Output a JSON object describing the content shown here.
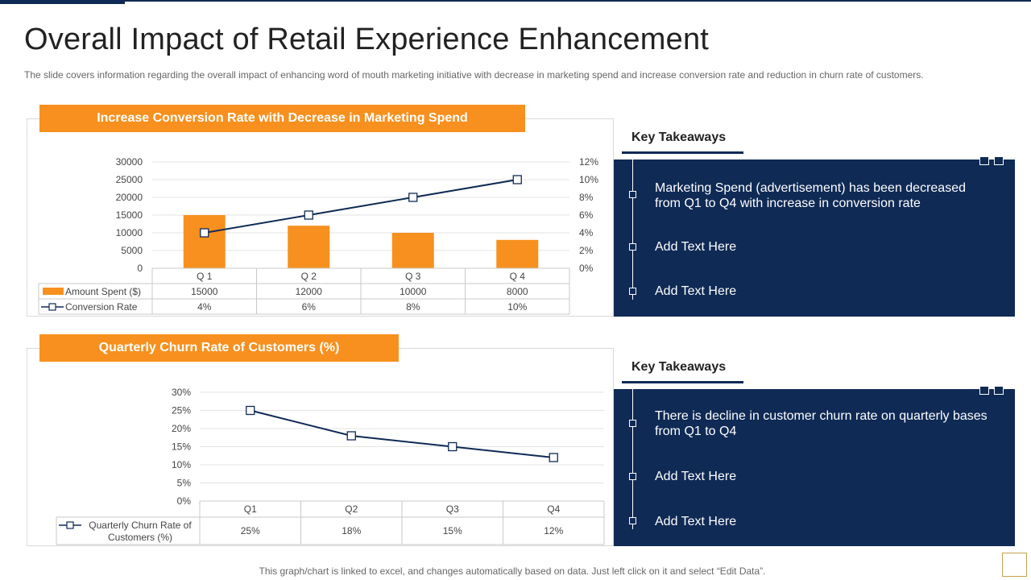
{
  "title": "Overall Impact of Retail Experience Enhancement",
  "subtitle": "The slide covers information regarding the overall impact of enhancing word of mouth marketing initiative with decrease in marketing spend and increase conversion rate and reduction in churn rate of customers.",
  "footer": "This graph/chart is linked to excel,  and changes automatically based on data. Just left click on it and select “Edit Data”.",
  "colors": {
    "navy": "#0f2a55",
    "orange": "#f7901e"
  },
  "chart_data": [
    {
      "type": "bar",
      "title": "Increase Conversion Rate with Decrease in Marketing Spend",
      "categories": [
        "Q 1",
        "Q 2",
        "Q 3",
        "Q 4"
      ],
      "series": [
        {
          "name": "Amount Spent ($)",
          "type": "bar",
          "axis": "left",
          "values": [
            15000,
            12000,
            10000,
            8000
          ],
          "labels": [
            "15000",
            "12000",
            "10000",
            "8000"
          ]
        },
        {
          "name": "Conversion Rate",
          "type": "line",
          "axis": "right",
          "values": [
            4,
            6,
            8,
            10
          ],
          "labels": [
            "4%",
            "6%",
            "8%",
            "10%"
          ]
        }
      ],
      "ylim": [
        0,
        30000
      ],
      "yticks": [
        "0",
        "5000",
        "10000",
        "15000",
        "20000",
        "25000",
        "30000"
      ],
      "y2lim": [
        0,
        12
      ],
      "y2ticks": [
        "0%",
        "2%",
        "4%",
        "6%",
        "8%",
        "10%",
        "12%"
      ],
      "data_table": true,
      "grid": true
    },
    {
      "type": "line",
      "title": "Quarterly Churn Rate of Customers (%)",
      "categories": [
        "Q1",
        "Q2",
        "Q3",
        "Q4"
      ],
      "series": [
        {
          "name": "Quarterly Churn Rate of Customers (%)",
          "values": [
            25,
            18,
            15,
            12
          ],
          "labels": [
            "25%",
            "18%",
            "15%",
            "12%"
          ]
        }
      ],
      "ylim": [
        0,
        30
      ],
      "yticks": [
        "0%",
        "5%",
        "10%",
        "15%",
        "20%",
        "25%",
        "30%"
      ],
      "data_table": true,
      "grid": true
    }
  ],
  "takeaways": [
    {
      "heading": "Key Takeaways",
      "items": [
        "Marketing Spend (advertisement) has been decreased from Q1 to Q4 with increase in conversion rate",
        "Add Text Here",
        "Add Text Here"
      ]
    },
    {
      "heading": "Key Takeaways",
      "items": [
        "There is decline in customer churn rate on quarterly bases from Q1 to Q4",
        "Add Text Here",
        "Add Text Here"
      ]
    }
  ]
}
